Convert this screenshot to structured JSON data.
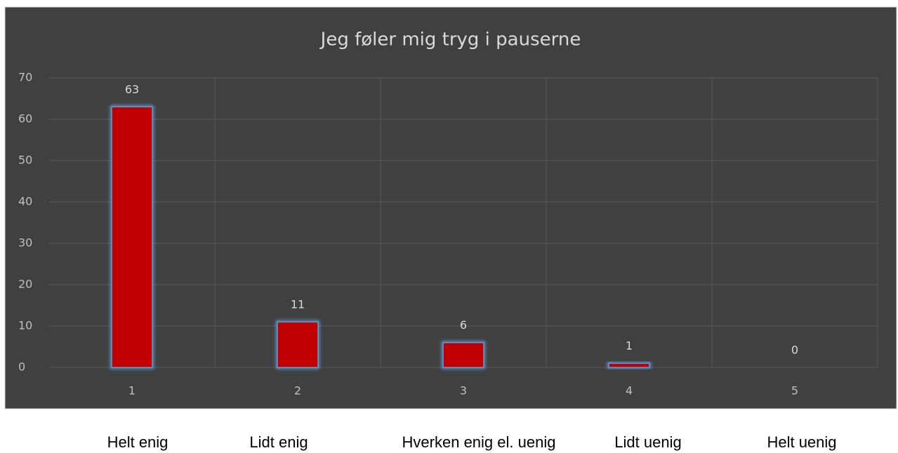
{
  "chart_data": {
    "type": "bar",
    "title": "Jeg føler mig tryg i pauserne",
    "categories": [
      "1",
      "2",
      "3",
      "4",
      "5"
    ],
    "values": [
      63,
      11,
      6,
      1,
      0
    ],
    "color": "#c00000",
    "ylim": [
      0,
      70
    ],
    "yticks": [
      0,
      10,
      20,
      30,
      40,
      50,
      60,
      70
    ],
    "grid": true,
    "answer_labels": [
      "Helt enig",
      "Lidt enig",
      "Hverken enig el. uenig",
      "Lidt uenig",
      "Helt uenig"
    ]
  }
}
